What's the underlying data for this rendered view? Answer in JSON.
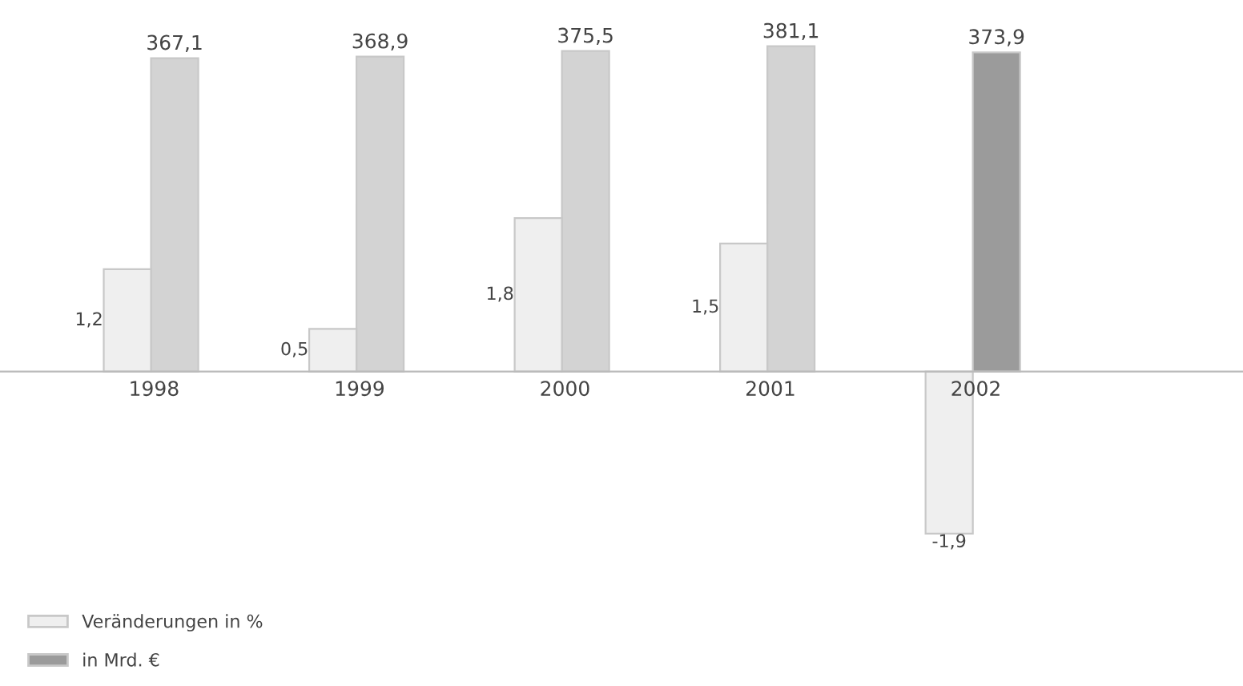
{
  "chart_data": {
    "type": "bar",
    "categories": [
      "1998",
      "1999",
      "2000",
      "2001",
      "2002"
    ],
    "series": [
      {
        "name": "Veränderungen in %",
        "color": "#efefef",
        "values": [
          1.2,
          0.5,
          1.8,
          1.5,
          -1.9
        ],
        "value_labels": [
          "1,2",
          "0,5",
          "1,8",
          "1,5",
          "-1,9"
        ]
      },
      {
        "name": "in Mrd. €",
        "color": "#d3d3d3",
        "colors": [
          "#d3d3d3",
          "#d3d3d3",
          "#d3d3d3",
          "#d3d3d3",
          "#9b9b9b"
        ],
        "axis": "y2",
        "values": [
          367.1,
          368.9,
          375.5,
          381.1,
          373.9
        ],
        "value_labels": [
          "367,1",
          "368,9",
          "375,5",
          "381,1",
          "373,9"
        ]
      }
    ],
    "data_labels": true,
    "legend": "bottom left",
    "grid": false,
    "tick_labels": "x"
  }
}
